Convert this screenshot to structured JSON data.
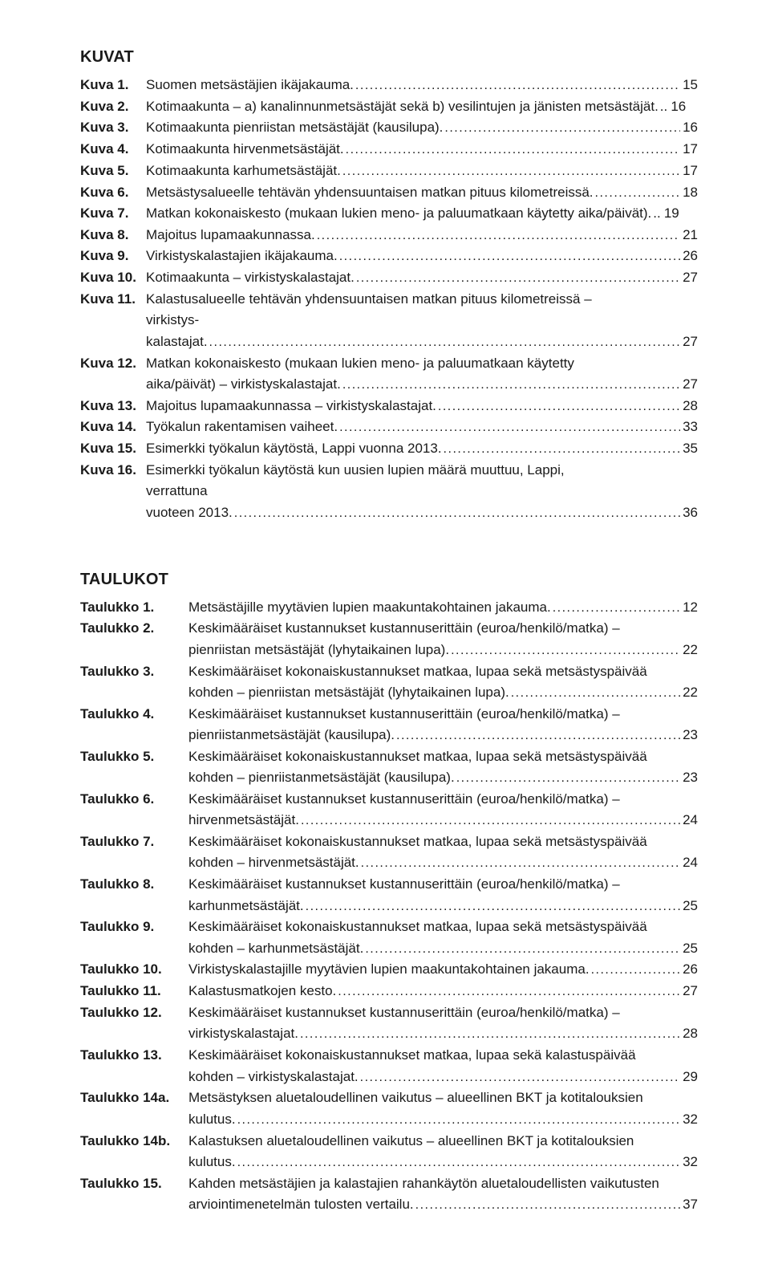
{
  "style": {
    "bg": "#ffffff",
    "text_color": "#1a1a1a",
    "heading_fontsize": 20,
    "body_fontsize": 17,
    "font_family": "Arial, Helvetica, sans-serif"
  },
  "sections": [
    {
      "heading": "KUVAT",
      "entries": [
        {
          "label": "Kuva 1.",
          "title": "Suomen metsästäjien ikäjakauma.",
          "page": "15"
        },
        {
          "label": "Kuva 2.",
          "title": "Kotimaakunta – a) kanalinnunmetsästäjät sekä b) vesilintujen ja jänisten metsästäjät.",
          "page": "16",
          "tight": true
        },
        {
          "label": "Kuva 3.",
          "title": "Kotimaakunta pienriistan metsästäjät (kausilupa).",
          "page": "16"
        },
        {
          "label": "Kuva 4.",
          "title": "Kotimaakunta hirvenmetsästäjät.",
          "page": "17"
        },
        {
          "label": "Kuva 5.",
          "title": "Kotimaakunta karhumetsästäjät.",
          "page": "17"
        },
        {
          "label": "Kuva 6.",
          "title": "Metsästysalueelle tehtävän yhdensuuntaisen matkan pituus kilometreissä.",
          "page": "18"
        },
        {
          "label": "Kuva 7.",
          "title": "Matkan kokonaiskesto (mukaan lukien meno- ja paluumatkaan käytetty aika/päivät).",
          "page": "19",
          "tight": true
        },
        {
          "label": "Kuva 8.",
          "title": "Majoitus lupamaakunnassa.",
          "page": "21"
        },
        {
          "label": "Kuva 9.",
          "title": "Virkistyskalastajien ikäjakauma.",
          "page": "26"
        },
        {
          "label": "Kuva 10.",
          "title": "Kotimaakunta – virkistyskalastajat.",
          "page": "27"
        },
        {
          "label": "Kuva 11.",
          "title_multiline": [
            "Kalastusalueelle tehtävän yhdensuuntaisen matkan pituus kilometreissä – virkistys-",
            "kalastajat."
          ],
          "page": "27"
        },
        {
          "label": "Kuva 12.",
          "title_multiline": [
            "Matkan kokonaiskesto (mukaan lukien meno- ja paluumatkaan käytetty",
            "aika/päivät) – virkistyskalastajat."
          ],
          "page": "27"
        },
        {
          "label": "Kuva 13.",
          "title": "Majoitus lupamaakunnassa – virkistyskalastajat.",
          "page": "28"
        },
        {
          "label": "Kuva 14.",
          "title": "Työkalun rakentamisen vaiheet.",
          "page": "33"
        },
        {
          "label": "Kuva 15.",
          "title": "Esimerkki työkalun käytöstä, Lappi vuonna 2013.",
          "page": "35"
        },
        {
          "label": "Kuva 16.",
          "title_multiline": [
            "Esimerkki työkalun käytöstä kun uusien lupien määrä muuttuu, Lappi, verrattuna",
            "vuoteen 2013."
          ],
          "page": "36"
        }
      ]
    },
    {
      "heading": "TAULUKOT",
      "label_width": "135px",
      "entries": [
        {
          "label": "Taulukko 1.",
          "title": "Metsästäjille myytävien lupien maakuntakohtainen jakauma.",
          "page": "12"
        },
        {
          "label": "Taulukko 2.",
          "title_multiline": [
            "Keskimääräiset kustannukset kustannuserittäin (euroa/henkilö/matka) –",
            "pienriistan metsästäjät (lyhytaikainen lupa)."
          ],
          "page": "22"
        },
        {
          "label": "Taulukko 3.",
          "title_multiline": [
            "Keskimääräiset kokonaiskustannukset matkaa, lupaa sekä metsästyspäivää",
            "kohden – pienriistan metsästäjät (lyhytaikainen lupa)."
          ],
          "page": "22"
        },
        {
          "label": "Taulukko 4.",
          "title_multiline": [
            "Keskimääräiset kustannukset kustannuserittäin (euroa/henkilö/matka) –",
            "pienriistanmetsästäjät (kausilupa)."
          ],
          "page": "23"
        },
        {
          "label": "Taulukko 5.",
          "title_multiline": [
            "Keskimääräiset kokonaiskustannukset matkaa, lupaa sekä metsästyspäivää",
            "kohden – pienriistanmetsästäjät (kausilupa)."
          ],
          "page": "23"
        },
        {
          "label": "Taulukko 6.",
          "title_multiline": [
            "Keskimääräiset kustannukset kustannuserittäin (euroa/henkilö/matka) –",
            "hirvenmetsästäjät."
          ],
          "page": "24"
        },
        {
          "label": "Taulukko 7.",
          "title_multiline": [
            "Keskimääräiset kokonaiskustannukset matkaa, lupaa sekä metsästyspäivää",
            "kohden – hirvenmetsästäjät."
          ],
          "page": "24"
        },
        {
          "label": "Taulukko 8.",
          "title_multiline": [
            "Keskimääräiset kustannukset kustannuserittäin (euroa/henkilö/matka) –",
            "karhunmetsästäjät."
          ],
          "page": "25"
        },
        {
          "label": "Taulukko 9.",
          "title_multiline": [
            "Keskimääräiset kokonaiskustannukset matkaa, lupaa sekä metsästyspäivää",
            "kohden – karhunmetsästäjät."
          ],
          "page": "25"
        },
        {
          "label": "Taulukko 10.",
          "title": "Virkistyskalastajille myytävien lupien maakuntakohtainen jakauma.",
          "page": "26"
        },
        {
          "label": "Taulukko 11.",
          "title": "Kalastusmatkojen kesto.",
          "page": "27"
        },
        {
          "label": "Taulukko 12.",
          "title_multiline": [
            "Keskimääräiset kustannukset kustannuserittäin (euroa/henkilö/matka) –",
            "virkistyskalastajat."
          ],
          "page": "28"
        },
        {
          "label": "Taulukko 13.",
          "title_multiline": [
            "Keskimääräiset kokonaiskustannukset matkaa, lupaa sekä kalastuspäivää",
            "kohden – virkistyskalastajat."
          ],
          "page": "29"
        },
        {
          "label": "Taulukko 14a.",
          "title_multiline": [
            "Metsästyksen aluetaloudellinen vaikutus – alueellinen BKT ja kotitalouksien",
            "kulutus."
          ],
          "page": "32"
        },
        {
          "label": "Taulukko 14b.",
          "title_multiline": [
            "Kalastuksen aluetaloudellinen vaikutus – alueellinen BKT ja kotitalouksien",
            "kulutus."
          ],
          "page": "32"
        },
        {
          "label": "Taulukko 15.",
          "title_multiline": [
            "Kahden metsästäjien ja kalastajien rahankäytön aluetaloudellisten vaikutusten",
            "arviointimenetelmän tulosten vertailu."
          ],
          "page": "37"
        }
      ]
    }
  ]
}
